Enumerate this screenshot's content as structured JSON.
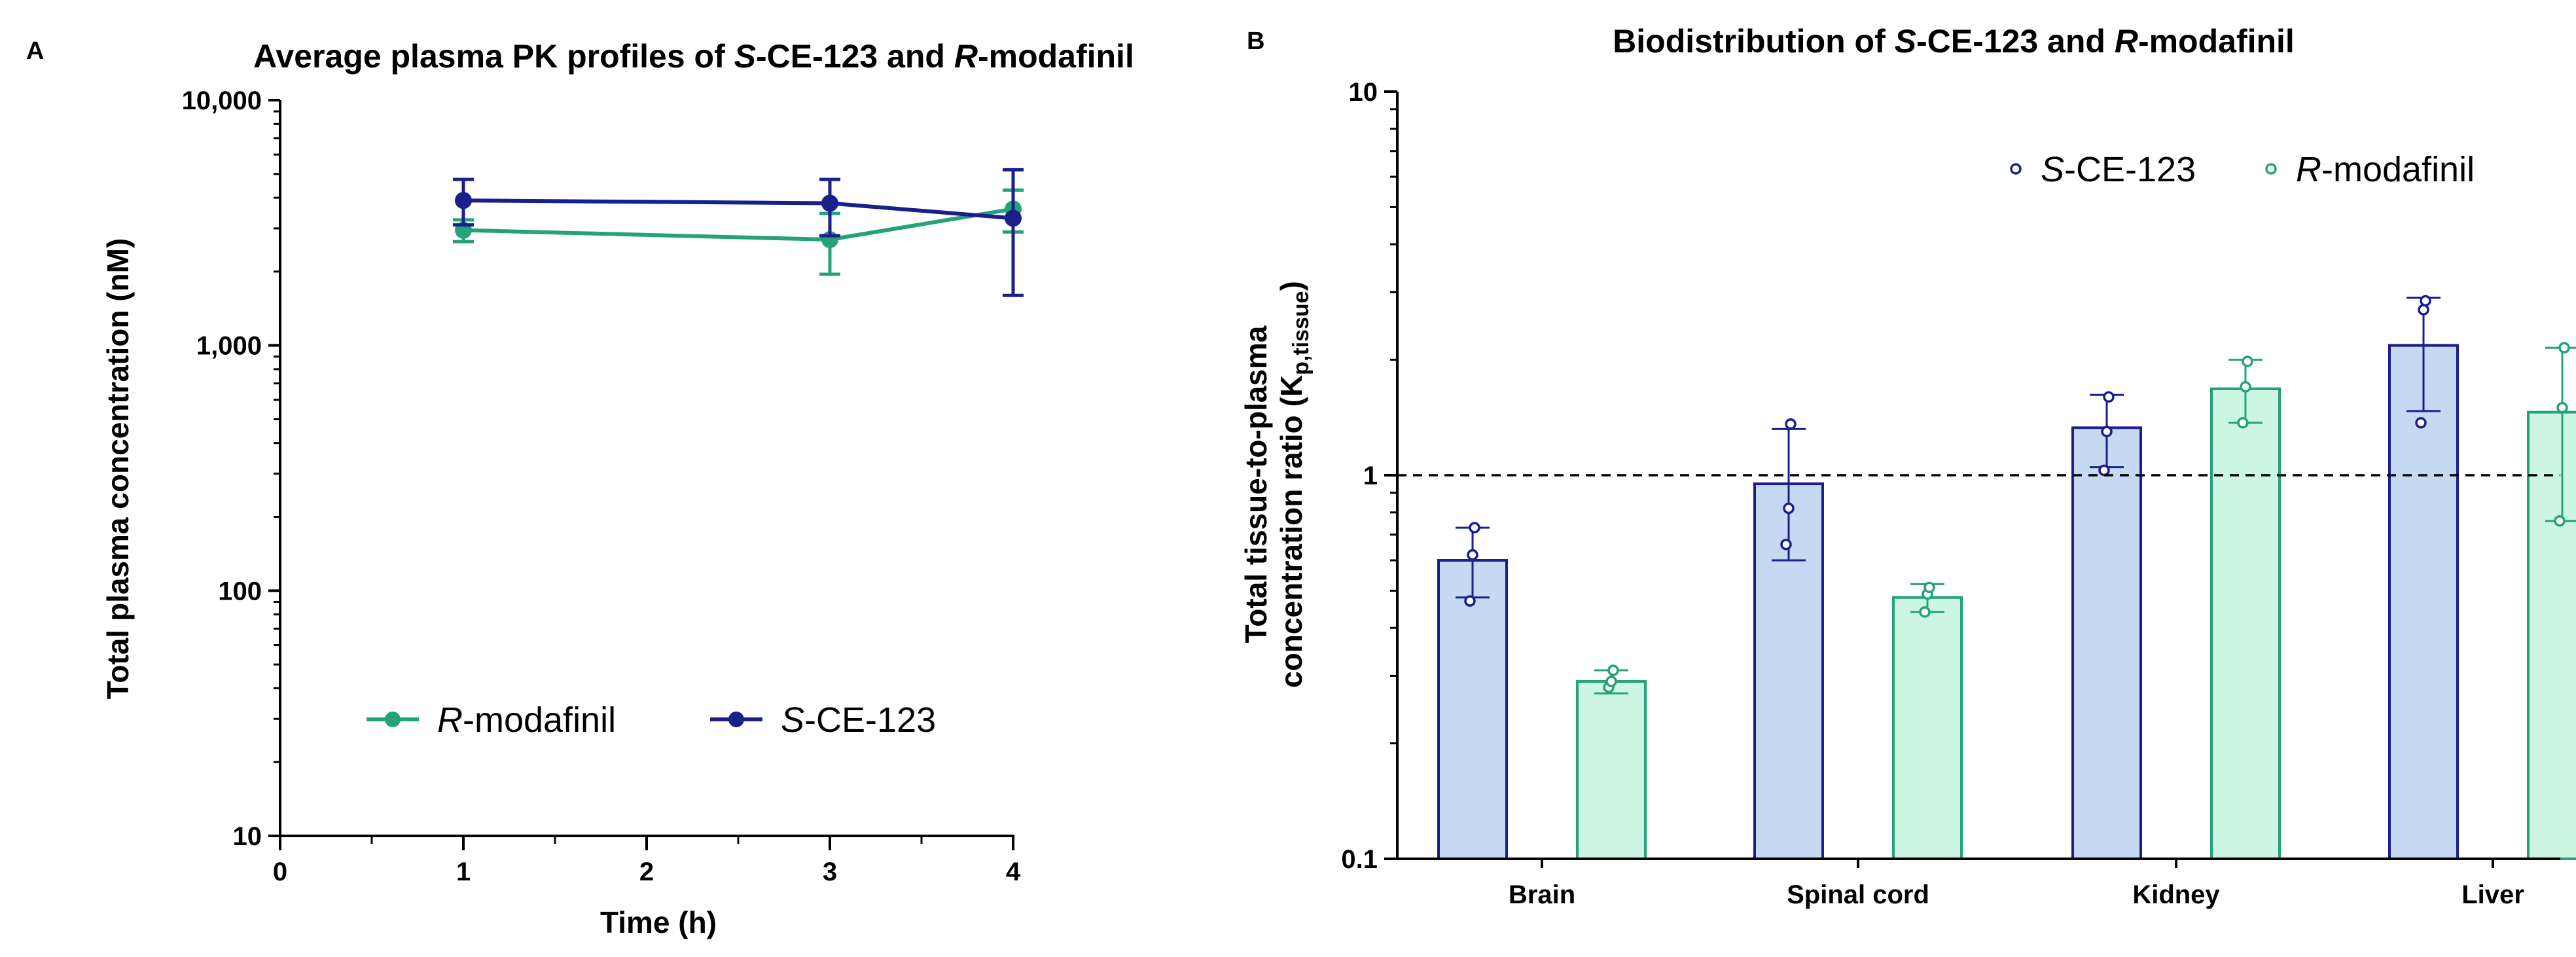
{
  "colors": {
    "s_ce123": "#1a1f8c",
    "r_modafinil": "#24a27a",
    "s_ce123_fill": "#c5d9f3",
    "r_modafinil_fill": "#cdf5e4"
  },
  "panel_a": {
    "letter": "A",
    "title_parts": [
      "Average plasma PK profiles of ",
      "S",
      "-CE-123 and ",
      "R",
      "-modafinil"
    ],
    "legend": [
      {
        "italic": "R",
        "rest": "-modafinil",
        "series": "R-modafinil"
      },
      {
        "italic": "S",
        "rest": "-CE-123",
        "series": "S-CE-123"
      }
    ]
  },
  "panel_b": {
    "letter": "B",
    "title_parts": [
      "Biodistribution of ",
      "S",
      "-CE-123 and ",
      "R",
      "-modafinil"
    ],
    "ylabel_line1": "Total tissue-to-plasma",
    "ylabel_line2_main": "concentration ratio (K",
    "ylabel_line2_sub": "p,tissue",
    "ylabel_line2_close": ")",
    "legend": [
      {
        "italic": "S",
        "rest": "-CE-123",
        "series": "S-CE-123"
      },
      {
        "italic": "R",
        "rest": "-modafinil",
        "series": "R-modafinil"
      }
    ]
  },
  "chart_data": [
    {
      "type": "line",
      "title": "Average plasma PK profiles of S-CE-123 and R-modafinil",
      "xlabel": "Time (h)",
      "ylabel": "Total plasma concentration (nM)",
      "yscale": "log",
      "ylim": [
        10,
        10000
      ],
      "xlim": [
        0,
        4
      ],
      "xticks": [
        0,
        1,
        2,
        3,
        4
      ],
      "xtick_labels": [
        "0",
        "1",
        "2",
        "3",
        "4"
      ],
      "yticks": [
        10,
        100,
        1000,
        10000
      ],
      "ytick_labels": [
        "10",
        "100",
        "1,000",
        "10,000"
      ],
      "legend_position": "bottom-center",
      "series": [
        {
          "name": "R-modafinil",
          "x": [
            1,
            3,
            4
          ],
          "y": [
            2950,
            2700,
            3600
          ],
          "err_low": [
            2650,
            1950,
            2900
          ],
          "err_high": [
            3250,
            3450,
            4300
          ]
        },
        {
          "name": "S-CE-123",
          "x": [
            1,
            3,
            4
          ],
          "y": [
            3900,
            3800,
            3300
          ],
          "err_low": [
            3100,
            2800,
            1600
          ],
          "err_high": [
            4750,
            4750,
            5200
          ]
        }
      ]
    },
    {
      "type": "bar",
      "title": "Biodistribution of S-CE-123 and R-modafinil",
      "xlabel": "",
      "ylabel": "Total tissue-to-plasma concentration ratio (Kp,tissue)",
      "yscale": "log",
      "ylim": [
        0.1,
        10
      ],
      "yticks": [
        0.1,
        1,
        10
      ],
      "ytick_labels": [
        "0.1",
        "1",
        "10"
      ],
      "reference_line": 1,
      "legend_position": "top-right",
      "categories": [
        "Brain",
        "Spinal cord",
        "Kidney",
        "Liver"
      ],
      "series": [
        {
          "name": "S-CE-123",
          "values": [
            0.6,
            0.95,
            1.33,
            2.18
          ],
          "err_low": [
            0.48,
            0.6,
            1.05,
            1.47
          ],
          "err_high": [
            0.73,
            1.32,
            1.62,
            2.9
          ],
          "points": [
            [
              0.47,
              0.62,
              0.73
            ],
            [
              0.66,
              0.82,
              1.36
            ],
            [
              1.03,
              1.3,
              1.6
            ],
            [
              1.37,
              2.7,
              2.85
            ]
          ]
        },
        {
          "name": "R-modafinil",
          "values": [
            0.29,
            0.48,
            1.68,
            1.46
          ],
          "err_low": [
            0.27,
            0.44,
            1.37,
            0.76
          ],
          "err_high": [
            0.31,
            0.52,
            2.0,
            2.15
          ],
          "points": [
            [
              0.28,
              0.29,
              0.31
            ],
            [
              0.44,
              0.49,
              0.51
            ],
            [
              1.37,
              1.7,
              1.98
            ],
            [
              0.76,
              1.5,
              2.15
            ]
          ]
        }
      ]
    }
  ]
}
